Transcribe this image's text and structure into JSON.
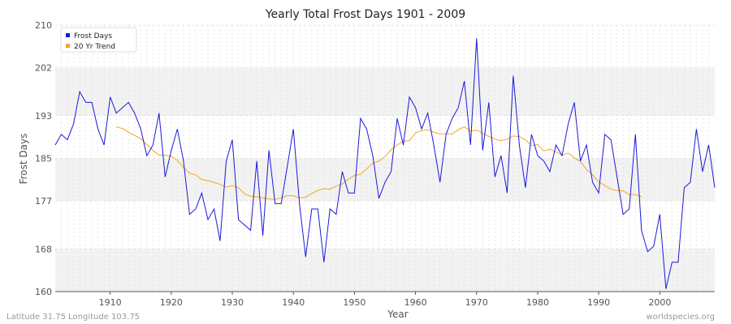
{
  "chart_data": {
    "type": "line",
    "title": "Yearly Total Frost Days 1901 - 2009",
    "xlabel": "Year",
    "ylabel": "Frost Days",
    "xlim": [
      1901,
      2009
    ],
    "ylim": [
      160,
      210
    ],
    "x_ticks": [
      1910,
      1920,
      1930,
      1940,
      1950,
      1960,
      1970,
      1980,
      1990,
      2000
    ],
    "y_ticks": [
      160,
      168,
      177,
      185,
      193,
      202,
      210
    ],
    "grid": true,
    "legend_position": "top-left",
    "colors": {
      "frost": "#1a1adb",
      "trend": "#f5a623",
      "band": "#f2f2f2",
      "grid": "#dddddd"
    },
    "series": [
      {
        "name": "Frost Days",
        "x_start": 1901,
        "values": [
          187.5,
          189.5,
          188.5,
          191.5,
          197.5,
          195.5,
          195.5,
          190.5,
          187.5,
          196.5,
          193.5,
          194.5,
          195.5,
          193.5,
          190.5,
          185.5,
          187.5,
          193.5,
          181.5,
          186.5,
          190.5,
          184.5,
          174.5,
          175.5,
          178.5,
          173.5,
          175.5,
          169.5,
          184.5,
          188.5,
          173.5,
          172.5,
          171.5,
          184.5,
          170.5,
          186.5,
          176.5,
          176.5,
          183.5,
          190.5,
          176.5,
          166.5,
          175.5,
          175.5,
          165.5,
          175.5,
          174.5,
          182.5,
          178.5,
          178.5,
          192.5,
          190.5,
          185.5,
          177.5,
          180.5,
          182.5,
          192.5,
          187.5,
          196.5,
          194.5,
          190.5,
          193.5,
          187.5,
          180.5,
          189.5,
          192.5,
          194.5,
          199.5,
          187.5,
          207.5,
          186.5,
          195.5,
          181.5,
          185.5,
          178.5,
          200.5,
          187.5,
          179.5,
          189.5,
          185.5,
          184.5,
          182.5,
          187.5,
          185.5,
          191.5,
          195.5,
          184.5,
          187.5,
          180.5,
          178.5,
          189.5,
          188.5,
          181.5,
          174.5,
          175.5,
          189.5,
          171.5,
          167.5,
          168.5,
          174.5,
          160.5,
          165.5,
          165.5,
          179.5,
          180.5,
          190.5,
          182.5,
          187.5,
          179.5
        ]
      },
      {
        "name": "20 Yr Trend",
        "x_start": 1911,
        "values": [
          190.9,
          190.6,
          189.9,
          189.3,
          188.7,
          187.6,
          186.5,
          185.6,
          185.6,
          185.4,
          184.6,
          183.3,
          182.2,
          181.9,
          181.0,
          180.8,
          180.5,
          180.1,
          179.6,
          179.9,
          179.5,
          178.3,
          177.9,
          177.8,
          177.6,
          177.4,
          177.3,
          177.6,
          178.0,
          178.0,
          177.6,
          177.7,
          178.4,
          179.0,
          179.3,
          179.2,
          179.8,
          180.2,
          181.1,
          181.8,
          182.0,
          183.0,
          184.1,
          184.5,
          185.3,
          186.6,
          187.5,
          188.2,
          188.3,
          189.8,
          190.2,
          190.4,
          189.9,
          189.6,
          189.6,
          189.6,
          190.4,
          190.9,
          190.1,
          190.3,
          189.7,
          189.1,
          188.6,
          188.3,
          188.6,
          189.2,
          189.1,
          188.5,
          187.4,
          187.6,
          186.4,
          186.7,
          186.2,
          185.6,
          186.0,
          185.1,
          184.4,
          182.9,
          181.9,
          180.6,
          179.9,
          179.2,
          179.0,
          178.9,
          178.2,
          178.2,
          177.8
        ]
      }
    ]
  },
  "footer": {
    "location": "Latitude 31.75 Longitude 103.75",
    "source": "worldspecies.org"
  }
}
